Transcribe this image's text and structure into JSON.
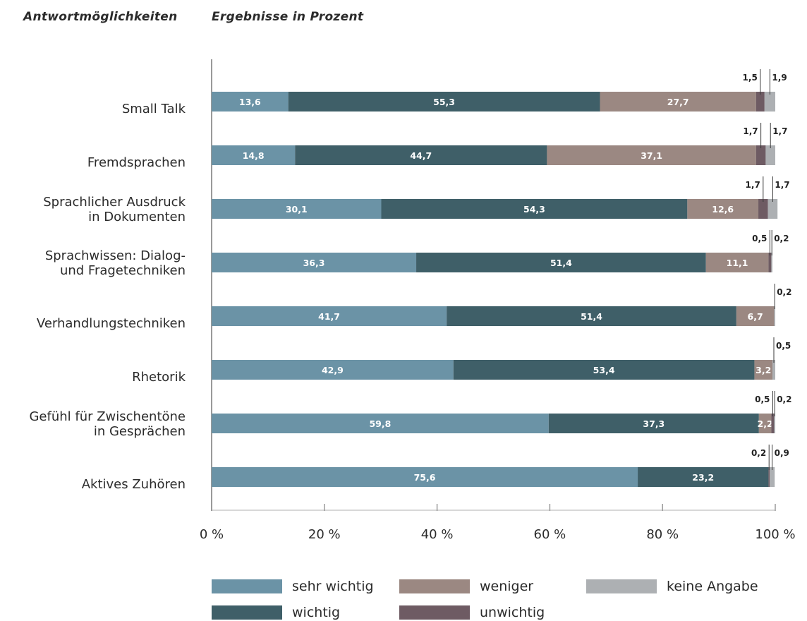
{
  "headers": {
    "left": "Antwortmöglichkeiten",
    "right": "Ergebnisse in Prozent"
  },
  "chart_data": {
    "type": "bar",
    "orientation": "horizontal",
    "stacked": true,
    "categories": [
      [
        "Small Talk"
      ],
      [
        "Fremdsprachen"
      ],
      [
        "Sprachlicher Ausdruck",
        "in Dokumenten"
      ],
      [
        "Sprachwissen: Dialog-",
        "und Fragetechniken"
      ],
      [
        "Verhandlungstechniken"
      ],
      [
        "Rhetorik"
      ],
      [
        "Gefühl für Zwischentöne",
        "in Gesprächen"
      ],
      [
        "Aktives Zuhören"
      ]
    ],
    "series": [
      {
        "name": "sehr wichtig",
        "color": "#6b93a6",
        "values": [
          13.6,
          14.8,
          30.1,
          36.3,
          41.7,
          42.9,
          59.8,
          75.6
        ],
        "labels": [
          "13,6",
          "14,8",
          "30,1",
          "36,3",
          "41,7",
          "42,9",
          "59,8",
          "75,6"
        ]
      },
      {
        "name": "wichtig",
        "color": "#3f5f68",
        "values": [
          55.3,
          44.7,
          54.3,
          51.4,
          51.4,
          53.4,
          37.3,
          23.2
        ],
        "labels": [
          "55,3",
          "44,7",
          "54,3",
          "51,4",
          "51,4",
          "53,4",
          "37,3",
          "23,2"
        ]
      },
      {
        "name": "weniger",
        "color": "#9b8882",
        "values": [
          27.7,
          37.1,
          12.6,
          11.1,
          6.7,
          3.2,
          2.2,
          0
        ],
        "labels": [
          "27,7",
          "37,1",
          "12,6",
          "11,1",
          "6,7",
          "3,2",
          "2,2",
          ""
        ]
      },
      {
        "name": "unwichtig",
        "color": "#6e5b63",
        "values": [
          1.5,
          1.7,
          1.7,
          0.5,
          0,
          0,
          0.5,
          0.2
        ],
        "labels": [
          "1,5",
          "1,7",
          "1,7",
          "0,5",
          "",
          "",
          "0,5",
          "0,2"
        ]
      },
      {
        "name": "keine Angabe",
        "color": "#adb0b3",
        "values": [
          1.9,
          1.7,
          1.7,
          0.2,
          0.2,
          0.5,
          0.2,
          0.9
        ],
        "labels": [
          "1,9",
          "1,7",
          "1,7",
          "0,2",
          "0,2",
          "0,5",
          "0,2",
          "0,9"
        ]
      }
    ],
    "xlim": [
      0,
      100
    ],
    "xticks": [
      0,
      20,
      40,
      60,
      80,
      100
    ],
    "xtick_labels": [
      "0 %",
      "20 %",
      "40 %",
      "60 %",
      "80 %",
      "100 %"
    ],
    "xlabel": "",
    "ylabel": "",
    "grid": false,
    "legend_position": "bottom",
    "legend_order": [
      "sehr wichtig",
      "weniger",
      "keine Angabe",
      "wichtig",
      "unwichtig"
    ]
  }
}
